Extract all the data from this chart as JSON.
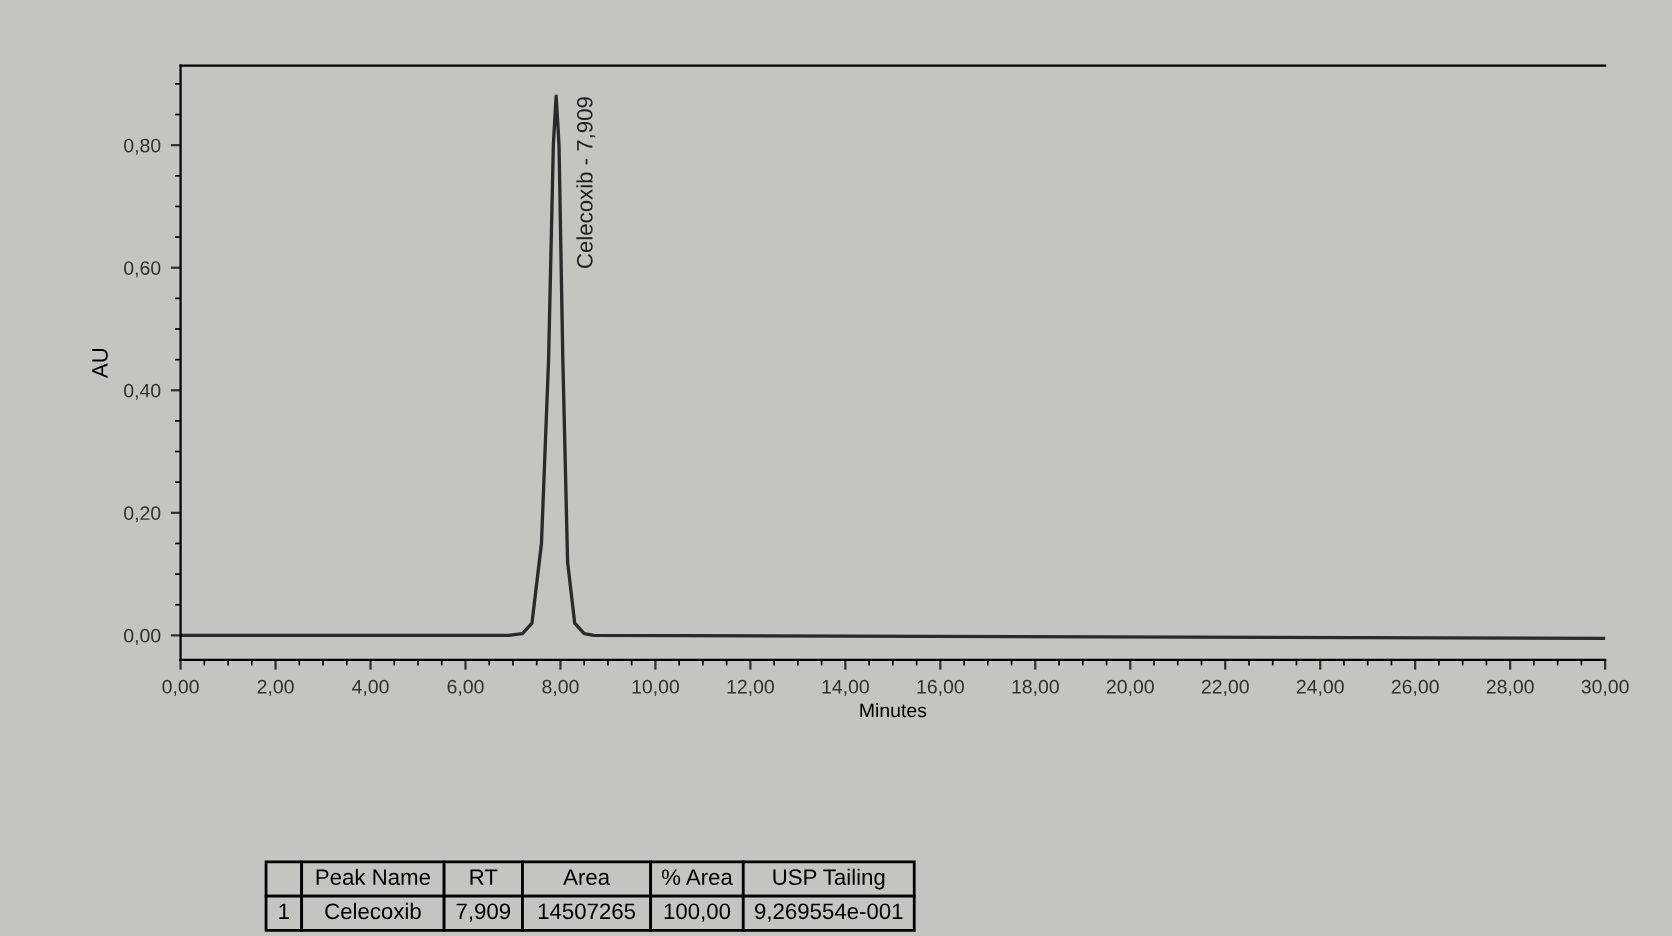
{
  "chart_data": {
    "type": "line",
    "xlabel": "Minutes",
    "ylabel": "AU",
    "x": [
      0,
      6.9,
      7.2,
      7.4,
      7.6,
      7.75,
      7.85,
      7.909,
      7.97,
      8.05,
      8.15,
      8.3,
      8.5,
      8.7,
      30
    ],
    "series": [
      {
        "color": "#2a2a2a",
        "values": [
          0,
          0,
          0.003,
          0.02,
          0.15,
          0.45,
          0.8,
          0.88,
          0.8,
          0.45,
          0.12,
          0.02,
          0.003,
          0,
          -0.005
        ]
      }
    ],
    "xlim": [
      0,
      30
    ],
    "ylim": [
      -0.04,
      0.93
    ],
    "xticks": [
      {
        "value": 0,
        "label": "0,00"
      },
      {
        "value": 2,
        "label": "2,00"
      },
      {
        "value": 4,
        "label": "4,00"
      },
      {
        "value": 6,
        "label": "6,00"
      },
      {
        "value": 8,
        "label": "8,00"
      },
      {
        "value": 10,
        "label": "10,00"
      },
      {
        "value": 12,
        "label": "12,00"
      },
      {
        "value": 14,
        "label": "14,00"
      },
      {
        "value": 16,
        "label": "16,00"
      },
      {
        "value": 18,
        "label": "18,00"
      },
      {
        "value": 20,
        "label": "20,00"
      },
      {
        "value": 22,
        "label": "22,00"
      },
      {
        "value": 24,
        "label": "24,00"
      },
      {
        "value": 26,
        "label": "26,00"
      },
      {
        "value": 28,
        "label": "28,00"
      },
      {
        "value": 30,
        "label": "30,00"
      }
    ],
    "yticks": [
      {
        "value": 0,
        "label": "0,00"
      },
      {
        "value": 0.2,
        "label": "0,20"
      },
      {
        "value": 0.4,
        "label": "0,40"
      },
      {
        "value": 0.6,
        "label": "0,60"
      },
      {
        "value": 0.8,
        "label": "0,80"
      }
    ],
    "grid": false,
    "legend": false,
    "marker": "none",
    "line_style": "solid",
    "annotations": [
      {
        "text": "Celecoxib - 7,909",
        "x": 7.909,
        "y": 0.88
      },
      "Peak Name",
      "RT",
      "Area",
      "% Area",
      "USP Tailing",
      "1",
      "Celecoxib",
      "7,909",
      "14507265",
      "100,00",
      "9,269554e-001"
    ]
  }
}
